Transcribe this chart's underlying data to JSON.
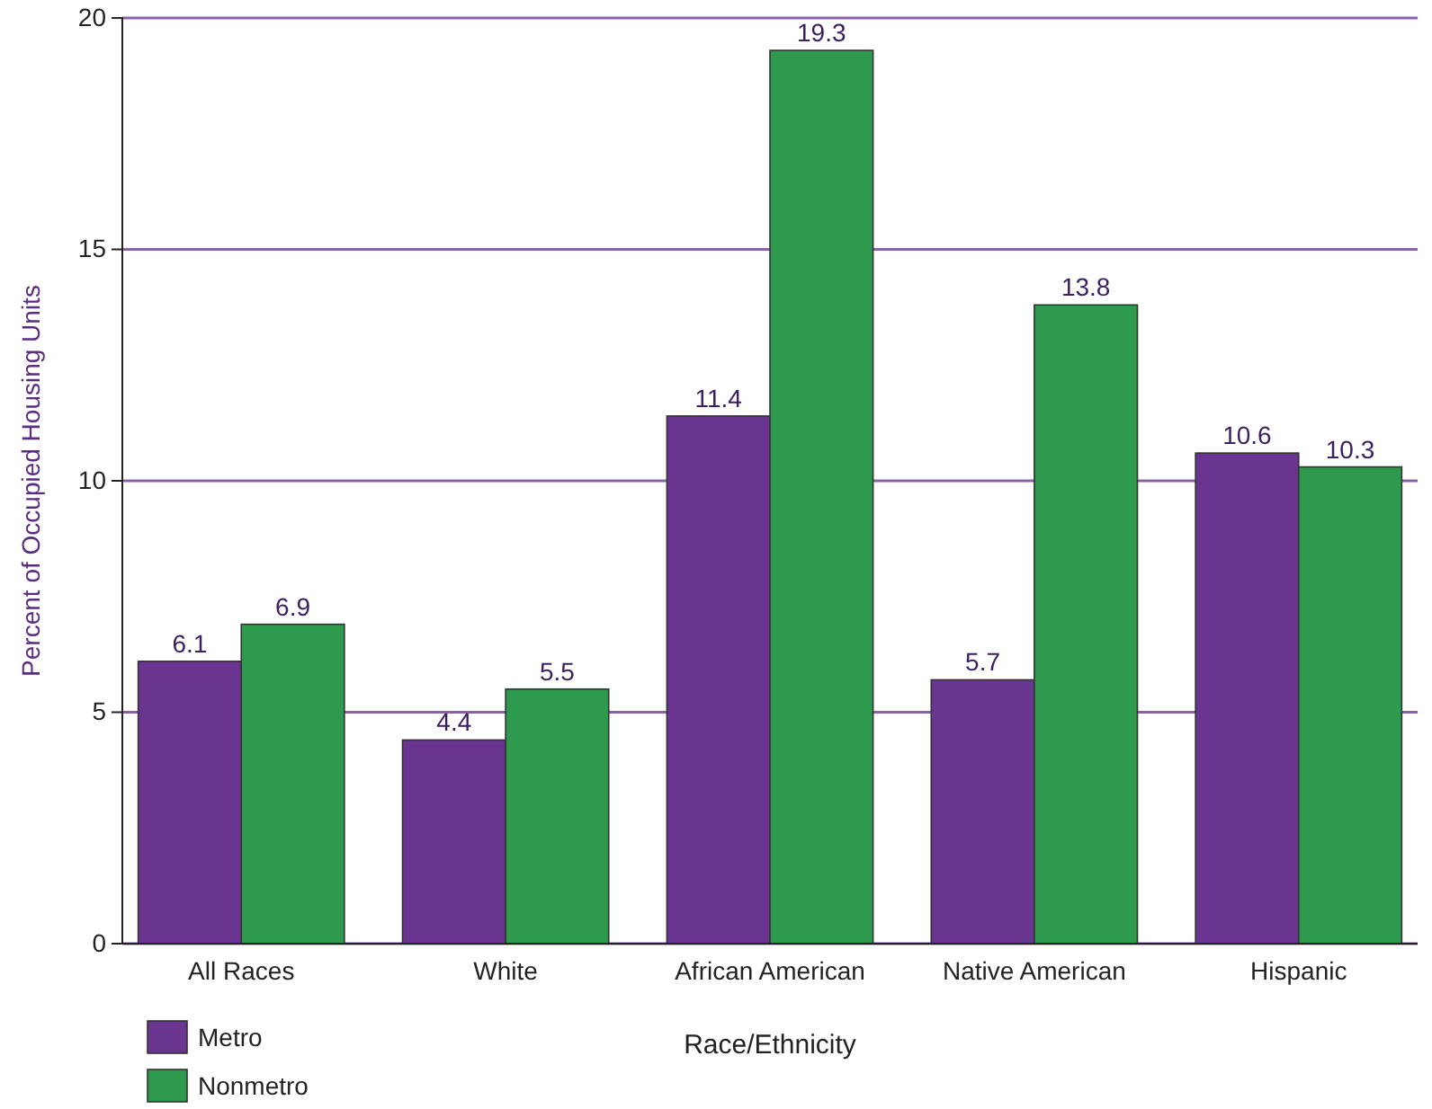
{
  "chart_data": {
    "type": "bar",
    "xlabel": "Race/Ethnicity",
    "ylabel": "Percent of Occupied Housing Units",
    "categories": [
      "All Races",
      "White",
      "African American",
      "Native American",
      "Hispanic"
    ],
    "series": [
      {
        "name": "Metro",
        "color": "#6a3590",
        "values": [
          6.1,
          4.4,
          11.4,
          5.7,
          10.6
        ]
      },
      {
        "name": "Nonmetro",
        "color": "#2e9a4e",
        "values": [
          6.9,
          5.5,
          19.3,
          13.8,
          10.3
        ]
      }
    ],
    "ylim": [
      0,
      20
    ],
    "yticks": [
      0,
      5,
      10,
      15,
      20
    ],
    "grid": "y",
    "data_labels": true,
    "legend": "bottom left"
  }
}
